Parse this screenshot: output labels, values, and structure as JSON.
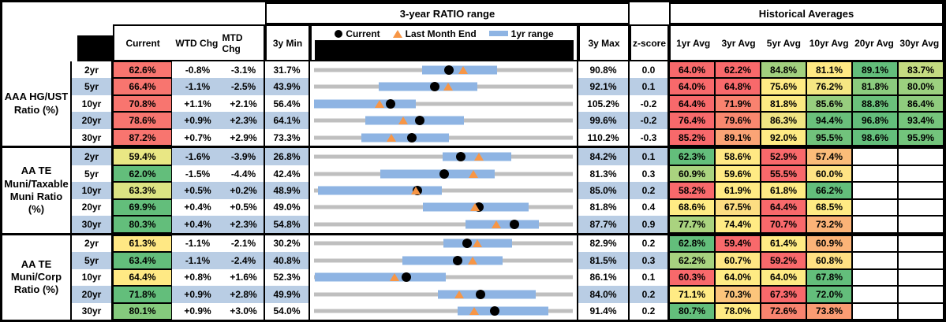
{
  "headers": {
    "ratio_range_title": "3-year RATIO range",
    "historical_title": "Historical Averages",
    "current": "Current",
    "wtd": "WTD Chg",
    "mtd": "MTD Chg",
    "min": "3y Min",
    "max": "3y Max",
    "zscore": "z-score",
    "legend_current": "Current",
    "legend_last_month": "Last Month End",
    "legend_range": "1yr range",
    "avg_cols": [
      "1yr Avg",
      "3yr Avg",
      "5yr Avg",
      "10yr Avg",
      "20yr Avg",
      "30yr Avg"
    ]
  },
  "colors": {
    "stripe": "#B9CDE4",
    "track": "#BFBFBF",
    "range_bar": "#8EB4E3",
    "marker_current": "#000000",
    "marker_last_month": "#F79646",
    "header_black": "#000000"
  },
  "groups": [
    {
      "label": "AAA HG/UST Ratio (%)",
      "rows": [
        {
          "tenor": "2yr",
          "current": "62.6%",
          "current_color": "#F8756F",
          "wtd": "-0.8%",
          "mtd": "-3.1%",
          "min": "31.7%",
          "max": "90.8%",
          "z": "0.0",
          "avgs": [
            {
              "v": "64.0%",
              "c": "#F8696B"
            },
            {
              "v": "62.2%",
              "c": "#F8696B"
            },
            {
              "v": "84.8%",
              "c": "#A2D07F"
            },
            {
              "v": "81.1%",
              "c": "#FFE984"
            },
            {
              "v": "89.1%",
              "c": "#63BE7B"
            },
            {
              "v": "83.7%",
              "c": "#C4DB81"
            }
          ]
        },
        {
          "tenor": "5yr",
          "current": "66.4%",
          "current_color": "#F8756F",
          "wtd": "-1.1%",
          "mtd": "-2.5%",
          "min": "43.9%",
          "max": "92.1%",
          "z": "0.1",
          "avgs": [
            {
              "v": "64.0%",
              "c": "#F8696B"
            },
            {
              "v": "64.8%",
              "c": "#F8696B"
            },
            {
              "v": "75.6%",
              "c": "#FFEB84"
            },
            {
              "v": "76.2%",
              "c": "#F5E783"
            },
            {
              "v": "81.8%",
              "c": "#8BCB7E"
            },
            {
              "v": "80.0%",
              "c": "#9CD07F"
            }
          ]
        },
        {
          "tenor": "10yr",
          "current": "70.8%",
          "current_color": "#F8756F",
          "wtd": "+1.1%",
          "mtd": "+2.1%",
          "min": "56.4%",
          "max": "105.2%",
          "z": "-0.2",
          "avgs": [
            {
              "v": "64.4%",
              "c": "#F8696B"
            },
            {
              "v": "71.9%",
              "c": "#F9826F"
            },
            {
              "v": "81.8%",
              "c": "#FCEA83"
            },
            {
              "v": "85.6%",
              "c": "#97CE7E"
            },
            {
              "v": "88.8%",
              "c": "#6AC07B"
            },
            {
              "v": "86.4%",
              "c": "#8FCC7E"
            }
          ]
        },
        {
          "tenor": "20yr",
          "current": "78.6%",
          "current_color": "#F8756F",
          "wtd": "+0.9%",
          "mtd": "+2.3%",
          "min": "64.1%",
          "max": "99.6%",
          "z": "-0.2",
          "avgs": [
            {
              "v": "76.4%",
              "c": "#F8696B"
            },
            {
              "v": "79.6%",
              "c": "#F9886F"
            },
            {
              "v": "86.3%",
              "c": "#F0E583"
            },
            {
              "v": "94.4%",
              "c": "#69C07B"
            },
            {
              "v": "96.8%",
              "c": "#63BE7B"
            },
            {
              "v": "93.4%",
              "c": "#76C57C"
            }
          ]
        },
        {
          "tenor": "30yr",
          "current": "87.2%",
          "current_color": "#F8756F",
          "wtd": "+0.7%",
          "mtd": "+2.9%",
          "min": "73.3%",
          "max": "110.2%",
          "z": "-0.3",
          "avgs": [
            {
              "v": "85.2%",
              "c": "#F8696B"
            },
            {
              "v": "89.1%",
              "c": "#FBA476"
            },
            {
              "v": "92.0%",
              "c": "#FFEB84"
            },
            {
              "v": "95.5%",
              "c": "#71C37C"
            },
            {
              "v": "98.6%",
              "c": "#63BE7B"
            },
            {
              "v": "95.9%",
              "c": "#73C47C"
            }
          ]
        }
      ]
    },
    {
      "label": "AA TE Muni/Taxable Muni Ratio (%)",
      "rows": [
        {
          "tenor": "2yr",
          "current": "59.4%",
          "current_color": "#E9E784",
          "wtd": "-1.6%",
          "mtd": "-3.9%",
          "min": "26.8%",
          "max": "84.2%",
          "z": "0.1",
          "avgs": [
            {
              "v": "62.3%",
              "c": "#63BE7B"
            },
            {
              "v": "58.6%",
              "c": "#FFE884"
            },
            {
              "v": "52.9%",
              "c": "#F8696B"
            },
            {
              "v": "57.4%",
              "c": "#FBBC79"
            },
            null,
            null
          ]
        },
        {
          "tenor": "5yr",
          "current": "62.0%",
          "current_color": "#63BE7B",
          "wtd": "-1.5%",
          "mtd": "-4.4%",
          "min": "42.4%",
          "max": "81.3%",
          "z": "0.3",
          "avgs": [
            {
              "v": "60.9%",
              "c": "#AAD37F"
            },
            {
              "v": "59.6%",
              "c": "#FFEB84"
            },
            {
              "v": "55.5%",
              "c": "#F8696B"
            },
            {
              "v": "60.0%",
              "c": "#FFE384"
            },
            null,
            null
          ]
        },
        {
          "tenor": "10yr",
          "current": "63.3%",
          "current_color": "#DCE383",
          "wtd": "+0.5%",
          "mtd": "+0.2%",
          "min": "48.9%",
          "max": "85.0%",
          "z": "0.2",
          "avgs": [
            {
              "v": "58.2%",
              "c": "#F8696B"
            },
            {
              "v": "61.9%",
              "c": "#FFEB84"
            },
            {
              "v": "61.8%",
              "c": "#FEEB84"
            },
            {
              "v": "66.2%",
              "c": "#63BE7B"
            },
            null,
            null
          ]
        },
        {
          "tenor": "20yr",
          "current": "69.9%",
          "current_color": "#63BE7B",
          "wtd": "+0.4%",
          "mtd": "+0.5%",
          "min": "49.0%",
          "max": "81.8%",
          "z": "0.4",
          "avgs": [
            {
              "v": "68.6%",
              "c": "#FFEB84"
            },
            {
              "v": "67.5%",
              "c": "#FDDD82"
            },
            {
              "v": "64.4%",
              "c": "#F8696B"
            },
            {
              "v": "68.5%",
              "c": "#FFEB84"
            },
            null,
            null
          ]
        },
        {
          "tenor": "30yr",
          "current": "80.3%",
          "current_color": "#63BE7B",
          "wtd": "+0.4%",
          "mtd": "+2.3%",
          "min": "54.8%",
          "max": "87.7%",
          "z": "0.9",
          "avgs": [
            {
              "v": "77.7%",
              "c": "#AAD37F"
            },
            {
              "v": "74.4%",
              "c": "#FFEB84"
            },
            {
              "v": "70.7%",
              "c": "#F8696B"
            },
            {
              "v": "73.2%",
              "c": "#FBB377"
            },
            null,
            null
          ]
        }
      ]
    },
    {
      "label": "AA TE Muni/Corp Ratio (%)",
      "rows": [
        {
          "tenor": "2yr",
          "current": "61.3%",
          "current_color": "#FFE884",
          "wtd": "-1.1%",
          "mtd": "-2.1%",
          "min": "30.2%",
          "max": "82.9%",
          "z": "0.2",
          "avgs": [
            {
              "v": "62.8%",
              "c": "#63BE7B"
            },
            {
              "v": "59.4%",
              "c": "#F8696B"
            },
            {
              "v": "61.4%",
              "c": "#FFEB84"
            },
            {
              "v": "60.9%",
              "c": "#FBB377"
            },
            null,
            null
          ]
        },
        {
          "tenor": "5yr",
          "current": "63.4%",
          "current_color": "#63BE7B",
          "wtd": "-1.1%",
          "mtd": "-2.4%",
          "min": "40.8%",
          "max": "81.5%",
          "z": "0.3",
          "avgs": [
            {
              "v": "62.2%",
              "c": "#A7D27F"
            },
            {
              "v": "60.7%",
              "c": "#FFE684"
            },
            {
              "v": "59.2%",
              "c": "#F8696B"
            },
            {
              "v": "60.8%",
              "c": "#FFE083"
            },
            null,
            null
          ]
        },
        {
          "tenor": "10yr",
          "current": "64.4%",
          "current_color": "#FFE984",
          "wtd": "+0.8%",
          "mtd": "+1.6%",
          "min": "52.3%",
          "max": "86.1%",
          "z": "0.1",
          "avgs": [
            {
              "v": "60.3%",
              "c": "#F8696B"
            },
            {
              "v": "64.0%",
              "c": "#FFEB84"
            },
            {
              "v": "64.0%",
              "c": "#FEEB84"
            },
            {
              "v": "67.8%",
              "c": "#63BE7B"
            },
            null,
            null
          ]
        },
        {
          "tenor": "20yr",
          "current": "71.8%",
          "current_color": "#63BE7B",
          "wtd": "+0.9%",
          "mtd": "+2.8%",
          "min": "49.9%",
          "max": "84.0%",
          "z": "0.2",
          "avgs": [
            {
              "v": "71.1%",
              "c": "#FFEB84"
            },
            {
              "v": "70.3%",
              "c": "#FCC57B"
            },
            {
              "v": "67.3%",
              "c": "#F8696B"
            },
            {
              "v": "72.0%",
              "c": "#63BE7B"
            },
            null,
            null
          ]
        },
        {
          "tenor": "30yr",
          "current": "80.1%",
          "current_color": "#85CA7D",
          "wtd": "+0.9%",
          "mtd": "+3.0%",
          "min": "54.0%",
          "max": "91.4%",
          "z": "0.2",
          "avgs": [
            {
              "v": "80.7%",
              "c": "#63BE7B"
            },
            {
              "v": "78.0%",
              "c": "#FFEB84"
            },
            {
              "v": "72.6%",
              "c": "#F8846F"
            },
            {
              "v": "73.8%",
              "c": "#FA9C73"
            },
            null,
            null
          ]
        }
      ]
    }
  ],
  "chart_data": {
    "type": "dot-range",
    "title": "3-year RATIO range",
    "legend": [
      "Current",
      "Last Month End",
      "1yr range"
    ],
    "axis_note": "each row scaled from its own 3y Min to 3y Max",
    "rows": [
      {
        "group": "AAA HG/UST",
        "tenor": "2yr",
        "min_3y": 31.7,
        "max_3y": 90.8,
        "range_1y": [
          56.3,
          73.5
        ],
        "current": 62.6,
        "last_month_end": 65.7
      },
      {
        "group": "AAA HG/UST",
        "tenor": "5yr",
        "min_3y": 43.9,
        "max_3y": 92.1,
        "range_1y": [
          56.0,
          74.3
        ],
        "current": 66.4,
        "last_month_end": 68.9
      },
      {
        "group": "AAA HG/UST",
        "tenor": "10yr",
        "min_3y": 56.4,
        "max_3y": 105.2,
        "range_1y": [
          56.4,
          75.6
        ],
        "current": 70.8,
        "last_month_end": 68.7
      },
      {
        "group": "AAA HG/UST",
        "tenor": "20yr",
        "min_3y": 64.1,
        "max_3y": 99.6,
        "range_1y": [
          71.1,
          84.7
        ],
        "current": 78.6,
        "last_month_end": 76.3
      },
      {
        "group": "AAA HG/UST",
        "tenor": "30yr",
        "min_3y": 73.3,
        "max_3y": 110.2,
        "range_1y": [
          80.0,
          92.5
        ],
        "current": 87.2,
        "last_month_end": 84.3
      },
      {
        "group": "AA TE Muni/Taxable Muni",
        "tenor": "2yr",
        "min_3y": 26.8,
        "max_3y": 84.2,
        "range_1y": [
          55.4,
          70.5
        ],
        "current": 59.4,
        "last_month_end": 63.3
      },
      {
        "group": "AA TE Muni/Taxable Muni",
        "tenor": "5yr",
        "min_3y": 42.4,
        "max_3y": 81.3,
        "range_1y": [
          52.4,
          69.6
        ],
        "current": 62.0,
        "last_month_end": 66.4
      },
      {
        "group": "AA TE Muni/Taxable Muni",
        "tenor": "10yr",
        "min_3y": 48.9,
        "max_3y": 85.0,
        "range_1y": [
          49.4,
          66.7
        ],
        "current": 63.3,
        "last_month_end": 63.1
      },
      {
        "group": "AA TE Muni/Taxable Muni",
        "tenor": "20yr",
        "min_3y": 49.0,
        "max_3y": 81.8,
        "range_1y": [
          62.8,
          76.2
        ],
        "current": 69.9,
        "last_month_end": 69.4
      },
      {
        "group": "AA TE Muni/Taxable Muni",
        "tenor": "30yr",
        "min_3y": 54.8,
        "max_3y": 87.7,
        "range_1y": [
          74.1,
          83.4
        ],
        "current": 80.3,
        "last_month_end": 78.0
      },
      {
        "group": "AA TE Muni/Corp",
        "tenor": "2yr",
        "min_3y": 30.2,
        "max_3y": 82.9,
        "range_1y": [
          56.5,
          70.6
        ],
        "current": 61.3,
        "last_month_end": 63.4
      },
      {
        "group": "AA TE Muni/Corp",
        "tenor": "5yr",
        "min_3y": 40.8,
        "max_3y": 81.5,
        "range_1y": [
          54.7,
          70.4
        ],
        "current": 63.4,
        "last_month_end": 65.8
      },
      {
        "group": "AA TE Muni/Corp",
        "tenor": "10yr",
        "min_3y": 52.3,
        "max_3y": 86.1,
        "range_1y": [
          52.4,
          69.5
        ],
        "current": 64.4,
        "last_month_end": 62.8
      },
      {
        "group": "AA TE Muni/Corp",
        "tenor": "20yr",
        "min_3y": 49.9,
        "max_3y": 84.0,
        "range_1y": [
          66.2,
          79.1
        ],
        "current": 71.8,
        "last_month_end": 69.0
      },
      {
        "group": "AA TE Muni/Corp",
        "tenor": "30yr",
        "min_3y": 54.0,
        "max_3y": 91.4,
        "range_1y": [
          74.7,
          87.9
        ],
        "current": 80.1,
        "last_month_end": 77.1
      }
    ]
  }
}
